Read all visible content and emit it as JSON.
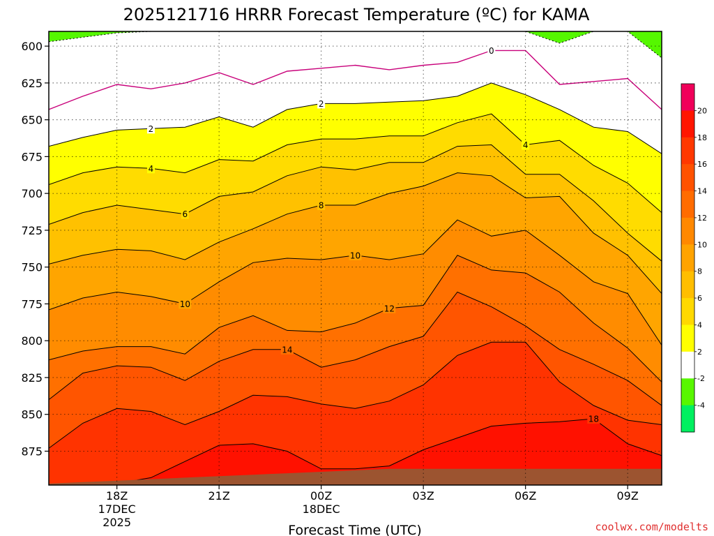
{
  "chart_data": {
    "type": "heatmap",
    "title": "2025121716 HRRR Forecast Temperature (ºC) for KAMA",
    "xlabel": "Forecast Time (UTC)",
    "ylabel": "",
    "credit": "coolwx.com/modelts",
    "x_hours": [
      16,
      17,
      18,
      19,
      20,
      21,
      22,
      23,
      24,
      25,
      26,
      27,
      28,
      29,
      30,
      31,
      32,
      33,
      34
    ],
    "xlim": [
      16,
      34
    ],
    "x_ticks": [
      {
        "hour": 18,
        "lines": [
          "18Z",
          "17DEC",
          "2025"
        ]
      },
      {
        "hour": 21,
        "lines": [
          "21Z"
        ]
      },
      {
        "hour": 24,
        "lines": [
          "00Z",
          "18DEC"
        ]
      },
      {
        "hour": 27,
        "lines": [
          "03Z"
        ]
      },
      {
        "hour": 30,
        "lines": [
          "06Z"
        ]
      },
      {
        "hour": 33,
        "lines": [
          "09Z"
        ]
      }
    ],
    "y_pressure_levels": [
      600,
      625,
      650,
      675,
      700,
      725,
      750,
      775,
      800,
      825,
      850,
      875
    ],
    "ylim": [
      590,
      898
    ],
    "y_reversed": true,
    "grid": true,
    "terrain_surface_hpa": [
      897,
      896,
      895,
      894,
      893,
      892,
      891,
      890,
      889,
      888,
      887,
      887,
      887,
      887,
      887,
      887,
      887,
      887,
      887
    ],
    "isotherm_pressures_hpa": {
      "-2": [
        597,
        594,
        591,
        590,
        590,
        590,
        590,
        590,
        590,
        590,
        590,
        590,
        590,
        590,
        590,
        598,
        590,
        590,
        608
      ],
      "0": [
        643,
        634,
        626,
        629,
        625,
        618,
        626,
        617,
        615,
        613,
        616,
        613,
        611,
        603,
        603,
        626,
        624,
        622,
        643
      ],
      "2": [
        668,
        662,
        657,
        656,
        655,
        648,
        655,
        643,
        639,
        639,
        638,
        637,
        634,
        625,
        633,
        643,
        655,
        658,
        673
      ],
      "4": [
        694,
        686,
        682,
        683,
        686,
        677,
        678,
        667,
        663,
        663,
        661,
        661,
        652,
        646,
        667,
        664,
        681,
        693,
        713
      ],
      "6": [
        721,
        713,
        708,
        711,
        714,
        702,
        699,
        688,
        682,
        684,
        679,
        679,
        668,
        667,
        687,
        687,
        705,
        727,
        746
      ],
      "8": [
        748,
        742,
        738,
        739,
        745,
        733,
        724,
        714,
        708,
        708,
        700,
        695,
        686,
        688,
        703,
        702,
        727,
        742,
        768
      ],
      "10": [
        779,
        771,
        767,
        770,
        775,
        760,
        747,
        744,
        745,
        742,
        745,
        741,
        718,
        729,
        725,
        742,
        760,
        768,
        803
      ],
      "12": [
        813,
        807,
        804,
        804,
        809,
        791,
        783,
        793,
        794,
        788,
        778,
        776,
        742,
        752,
        754,
        767,
        788,
        805,
        828
      ],
      "14": [
        840,
        822,
        817,
        818,
        827,
        814,
        806,
        806,
        818,
        813,
        804,
        797,
        767,
        777,
        790,
        806,
        816,
        827,
        844
      ],
      "16": [
        873,
        856,
        846,
        848,
        857,
        848,
        837,
        838,
        843,
        846,
        841,
        830,
        810,
        801,
        801,
        828,
        844,
        854,
        857
      ],
      "18": [
        898,
        898,
        897,
        893,
        882,
        871,
        870,
        875,
        887,
        887,
        885,
        874,
        866,
        858,
        856,
        855,
        853,
        870,
        878
      ]
    },
    "isotherm_labels": [
      {
        "value": "-2",
        "text": ""
      },
      {
        "value": "0",
        "text": "0",
        "hour": 29.0
      },
      {
        "value": "2",
        "text": "2",
        "hour": 19.0
      },
      {
        "value": "2",
        "text": "2",
        "hour": 24.0
      },
      {
        "value": "4",
        "text": "4",
        "hour": 19.0
      },
      {
        "value": "4",
        "text": "4",
        "hour": 30.0
      },
      {
        "value": "6",
        "text": "6",
        "hour": 20.0
      },
      {
        "value": "8",
        "text": "8",
        "hour": 24.0
      },
      {
        "value": "10",
        "text": "10",
        "hour": 20.0
      },
      {
        "value": "10",
        "text": "10",
        "hour": 25.0
      },
      {
        "value": "12",
        "text": "12",
        "hour": 26.0
      },
      {
        "value": "14",
        "text": "14",
        "hour": 23.0
      },
      {
        "value": "18",
        "text": "18",
        "hour": 32.0
      }
    ],
    "fill_bands": [
      {
        "min": -4,
        "max": -2,
        "color": "#55f700"
      },
      {
        "min": -2,
        "max": 0,
        "color": "#ffffff"
      },
      {
        "min": 0,
        "max": 2,
        "color": "#ffffff"
      },
      {
        "min": 2,
        "max": 4,
        "color": "#ffff00"
      },
      {
        "min": 4,
        "max": 6,
        "color": "#ffdc00"
      },
      {
        "min": 6,
        "max": 8,
        "color": "#ffc100"
      },
      {
        "min": 8,
        "max": 10,
        "color": "#ffa500"
      },
      {
        "min": 10,
        "max": 12,
        "color": "#ff8c00"
      },
      {
        "min": 12,
        "max": 14,
        "color": "#ff7000"
      },
      {
        "min": 14,
        "max": 16,
        "color": "#ff5500"
      },
      {
        "min": 16,
        "max": 18,
        "color": "#ff3300"
      },
      {
        "min": 18,
        "max": 20,
        "color": "#ff1100"
      }
    ],
    "colorbar": {
      "labels": [
        "20",
        "18",
        "16",
        "14",
        "12",
        "10",
        "8",
        "6",
        "4",
        "2",
        "-2",
        "-4"
      ],
      "colors": [
        "#f0005a",
        "#ff1500",
        "#ff3800",
        "#ff5200",
        "#ff6c00",
        "#ff8800",
        "#ffa300",
        "#ffbe00",
        "#ffd900",
        "#ffff00",
        "#ffffff",
        "#58f700",
        "#00f060"
      ]
    },
    "line_colors": {
      "normal": "#000000",
      "freezing": "#c8007a",
      "below_freezing": "#000000"
    },
    "terrain_color": "#9c5430"
  }
}
